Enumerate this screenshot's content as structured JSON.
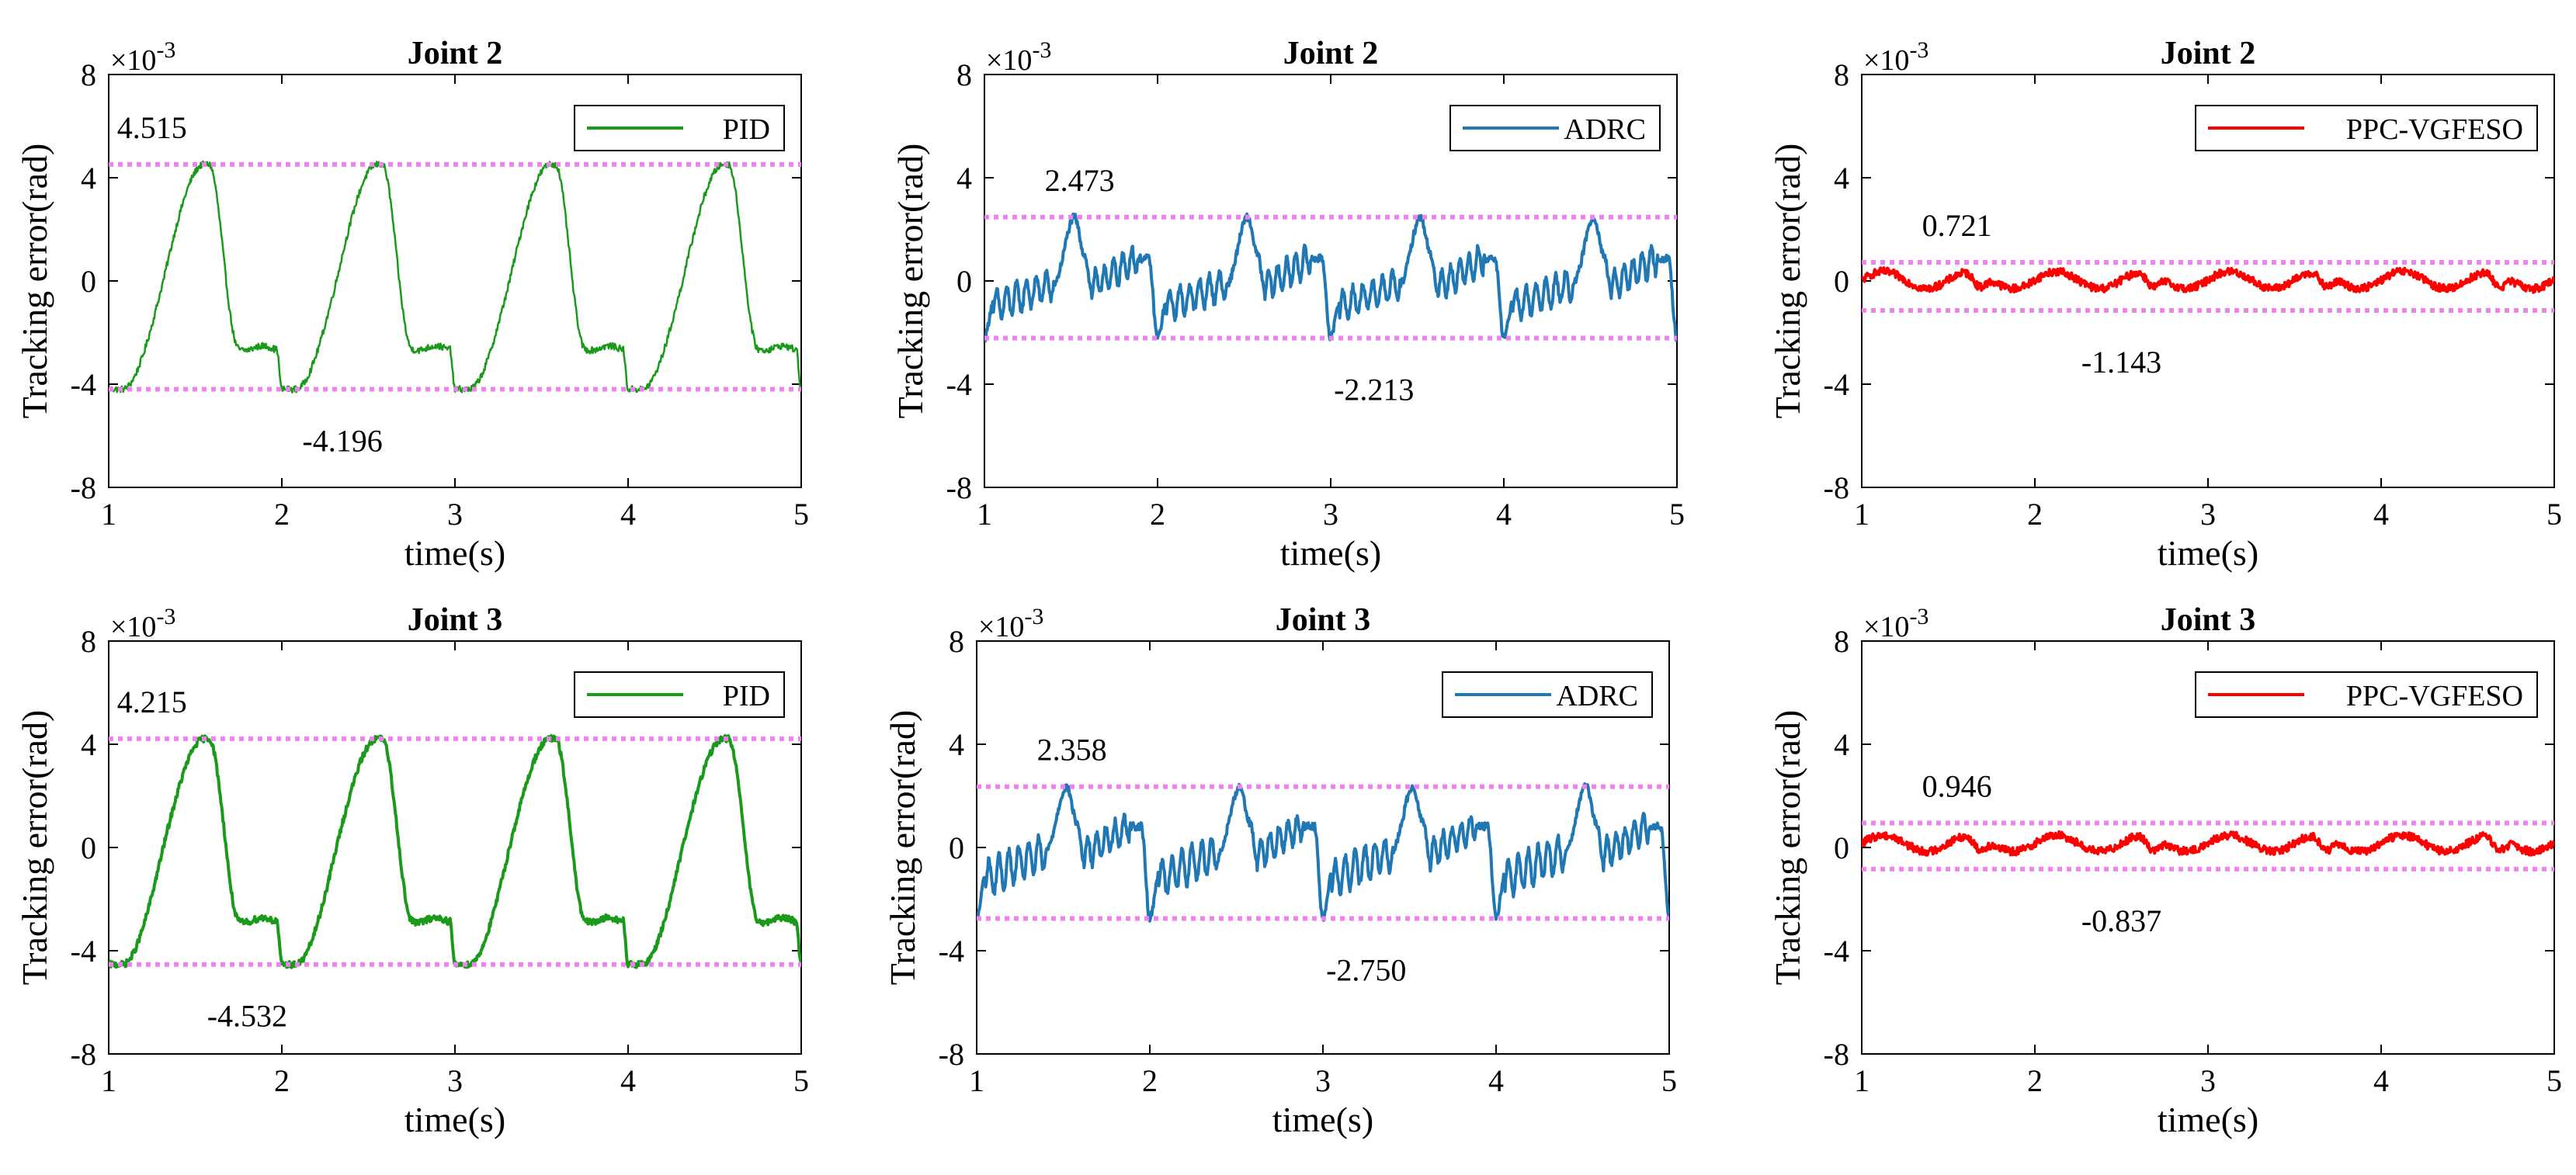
{
  "chart_data": [
    {
      "type": "line",
      "title": "Joint 2",
      "xlabel": "time(s)",
      "ylabel": "Tracking error(rad)",
      "y_scale_base": "×10",
      "y_scale_exp": "-3",
      "xlim": [
        1,
        5
      ],
      "ylim": [
        -8,
        8
      ],
      "xticks": [
        "1",
        "2",
        "3",
        "4",
        "5"
      ],
      "yticks": [
        "8",
        "4",
        "0",
        "-4",
        "-8"
      ],
      "legend": "PID",
      "legend_location": "top-right",
      "color": "#1a9a1a",
      "line_weight": "thin",
      "profile": "triangle",
      "upper_bound": 4.515,
      "lower_bound": -4.196,
      "upper_label": "4.515",
      "lower_label": "-4.196",
      "bound_color": "#ee82ee",
      "series": [
        {
          "name": "PID",
          "period": 1,
          "phase": 0.0,
          "noise": 0.25
        }
      ]
    },
    {
      "type": "line",
      "title": "Joint 2",
      "xlabel": "time(s)",
      "ylabel": "Tracking error(rad)",
      "y_scale_base": "×10",
      "y_scale_exp": "-3",
      "xlim": [
        1,
        5
      ],
      "ylim": [
        -8,
        8
      ],
      "xticks": [
        "1",
        "2",
        "3",
        "4",
        "5"
      ],
      "yticks": [
        "8",
        "4",
        "0",
        "-4",
        "-8"
      ],
      "legend": "ADRC",
      "legend_location": "top-right",
      "color": "#1f77b4",
      "line_weight": "thick",
      "profile": "square",
      "upper_bound": 2.473,
      "lower_bound": -2.213,
      "upper_label": "2.473",
      "lower_label": "-2.213",
      "bound_color": "#ee82ee",
      "series": [
        {
          "name": "ADRC",
          "period": 1,
          "phase": 0.0,
          "noise": 0.3
        }
      ]
    },
    {
      "type": "line",
      "title": "Joint 2",
      "xlabel": "time(s)",
      "ylabel": "Tracking error(rad)",
      "y_scale_base": "×10",
      "y_scale_exp": "-3",
      "xlim": [
        1,
        5
      ],
      "ylim": [
        -8,
        8
      ],
      "xticks": [
        "1",
        "2",
        "3",
        "4",
        "5"
      ],
      "yticks": [
        "8",
        "4",
        "0",
        "-4",
        "-8"
      ],
      "legend": "PPC-VGFESO",
      "legend_location": "top-right",
      "color": "#ff0000",
      "line_weight": "thick",
      "profile": "small",
      "upper_bound": 0.721,
      "lower_bound": -1.143,
      "upper_label": "0.721",
      "lower_label": "-1.143",
      "bound_color": "#ee82ee",
      "series": [
        {
          "name": "PPC-VGFESO",
          "period": 1,
          "phase": 0.0,
          "noise": 0.3
        }
      ]
    },
    {
      "type": "line",
      "title": "Joint 3",
      "xlabel": "time(s)",
      "ylabel": "Tracking error(rad)",
      "y_scale_base": "×10",
      "y_scale_exp": "-3",
      "xlim": [
        1,
        5
      ],
      "ylim": [
        -8,
        8
      ],
      "xticks": [
        "1",
        "2",
        "3",
        "4",
        "5"
      ],
      "yticks": [
        "8",
        "4",
        "0",
        "-4",
        "-8"
      ],
      "legend": "PID",
      "legend_location": "top-right",
      "color": "#1a9a1a",
      "line_weight": "thick",
      "profile": "triangle",
      "upper_bound": 4.215,
      "lower_bound": -4.532,
      "upper_label": "4.215",
      "lower_label": "-4.532",
      "bound_color": "#ee82ee",
      "series": [
        {
          "name": "PID",
          "period": 1,
          "phase": 0.0,
          "noise": 0.25
        }
      ]
    },
    {
      "type": "line",
      "title": "Joint 3",
      "xlabel": "time(s)",
      "ylabel": "Tracking error(rad)",
      "y_scale_base": "×10",
      "y_scale_exp": "-3",
      "xlim": [
        1,
        5
      ],
      "ylim": [
        -8,
        8
      ],
      "xticks": [
        "1",
        "2",
        "3",
        "4",
        "5"
      ],
      "yticks": [
        "8",
        "4",
        "0",
        "-4",
        "-8"
      ],
      "legend": "ADRC",
      "legend_location": "top-right",
      "color": "#1f77b4",
      "line_weight": "thick",
      "profile": "square",
      "upper_bound": 2.358,
      "lower_bound": -2.75,
      "upper_label": "2.358",
      "lower_label": "-2.750",
      "bound_color": "#ee82ee",
      "series": [
        {
          "name": "ADRC",
          "period": 1,
          "phase": 0.0,
          "noise": 0.3
        }
      ]
    },
    {
      "type": "line",
      "title": "Joint 3",
      "xlabel": "time(s)",
      "ylabel": "Tracking error(rad)",
      "y_scale_base": "×10",
      "y_scale_exp": "-3",
      "xlim": [
        1,
        5
      ],
      "ylim": [
        -8,
        8
      ],
      "xticks": [
        "1",
        "2",
        "3",
        "4",
        "5"
      ],
      "yticks": [
        "8",
        "4",
        "0",
        "-4",
        "-8"
      ],
      "legend": "PPC-VGFESO",
      "legend_location": "top-right",
      "color": "#ff0000",
      "line_weight": "thick",
      "profile": "small",
      "upper_bound": 0.946,
      "lower_bound": -0.837,
      "upper_label": "0.946",
      "lower_label": "-0.837",
      "bound_color": "#ee82ee",
      "series": [
        {
          "name": "PPC-VGFESO",
          "period": 1,
          "phase": 0.0,
          "noise": 0.3
        }
      ]
    }
  ]
}
